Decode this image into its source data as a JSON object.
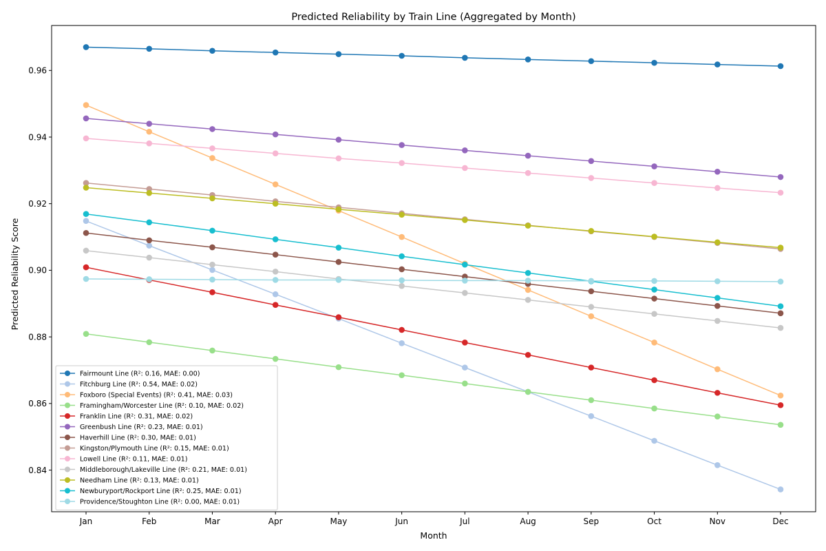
{
  "chart_data": {
    "type": "line",
    "title": "Predicted Reliability by Train Line (Aggregated by Month)",
    "xlabel": "Month",
    "ylabel": "Predicted Reliability Score",
    "categories": [
      "Jan",
      "Feb",
      "Mar",
      "Apr",
      "May",
      "Jun",
      "Jul",
      "Aug",
      "Sep",
      "Oct",
      "Nov",
      "Dec"
    ],
    "ylim": [
      0.8275,
      0.9735
    ],
    "yticks": [
      0.84,
      0.86,
      0.88,
      0.9,
      0.92,
      0.94,
      0.96
    ],
    "ytick_labels": [
      "0.84",
      "0.86",
      "0.88",
      "0.90",
      "0.92",
      "0.94",
      "0.96"
    ],
    "grid": false,
    "legend_position": "lower-left",
    "series": [
      {
        "name": "Fairmount Line (R²: 0.16, MAE: 0.00)",
        "color": "#1f77b4",
        "values": [
          0.967,
          0.9665,
          0.9659,
          0.9654,
          0.9649,
          0.9644,
          0.9638,
          0.9633,
          0.9628,
          0.9623,
          0.9618,
          0.9613
        ]
      },
      {
        "name": "Fitchburg Line (R²: 0.54, MAE: 0.02)",
        "color": "#aec7e8",
        "values": [
          0.9148,
          0.9074,
          0.9001,
          0.8928,
          0.8855,
          0.8781,
          0.8708,
          0.8635,
          0.8562,
          0.8488,
          0.8415,
          0.8342
        ]
      },
      {
        "name": "Foxboro (Special Events) (R²: 0.41, MAE: 0.03)",
        "color": "#ffbb78",
        "values": [
          0.9496,
          0.9416,
          0.9337,
          0.9258,
          0.9179,
          0.91,
          0.902,
          0.8941,
          0.8862,
          0.8783,
          0.8703,
          0.8624
        ]
      },
      {
        "name": "Framingham/Worcester Line (R²: 0.10, MAE: 0.02)",
        "color": "#98df8a",
        "values": [
          0.8809,
          0.8784,
          0.8759,
          0.8734,
          0.8709,
          0.8685,
          0.866,
          0.8635,
          0.861,
          0.8585,
          0.8561,
          0.8536
        ]
      },
      {
        "name": "Franklin Line (R²: 0.31, MAE: 0.02)",
        "color": "#d62728",
        "values": [
          0.9009,
          0.8971,
          0.8934,
          0.8896,
          0.8859,
          0.8821,
          0.8783,
          0.8746,
          0.8708,
          0.867,
          0.8632,
          0.8595
        ]
      },
      {
        "name": "Greenbush Line (R²: 0.23, MAE: 0.01)",
        "color": "#9467bd",
        "values": [
          0.9456,
          0.944,
          0.9424,
          0.9408,
          0.9392,
          0.9376,
          0.936,
          0.9344,
          0.9328,
          0.9312,
          0.9296,
          0.928
        ]
      },
      {
        "name": "Haverhill Line (R²: 0.30, MAE: 0.01)",
        "color": "#8c564b",
        "values": [
          0.9112,
          0.909,
          0.9069,
          0.9047,
          0.9025,
          0.9003,
          0.8981,
          0.8959,
          0.8937,
          0.8915,
          0.8893,
          0.8871
        ]
      },
      {
        "name": "Kingston/Plymouth Line (R²: 0.15, MAE: 0.01)",
        "color": "#c49c94",
        "values": [
          0.9262,
          0.9244,
          0.9226,
          0.9207,
          0.9189,
          0.9171,
          0.9153,
          0.9135,
          0.9117,
          0.91,
          0.9082,
          0.9064
        ]
      },
      {
        "name": "Lowell Line (R²: 0.11, MAE: 0.01)",
        "color": "#f7b6d2",
        "values": [
          0.9396,
          0.9381,
          0.9366,
          0.9351,
          0.9336,
          0.9322,
          0.9307,
          0.9292,
          0.9277,
          0.9262,
          0.9247,
          0.9233
        ]
      },
      {
        "name": "Middleborough/Lakeville Line (R²: 0.21, MAE: 0.01)",
        "color": "#c7c7c7",
        "values": [
          0.9059,
          0.9038,
          0.9017,
          0.8996,
          0.8974,
          0.8953,
          0.8932,
          0.8911,
          0.889,
          0.8869,
          0.8848,
          0.8827
        ]
      },
      {
        "name": "Needham Line (R²: 0.13, MAE: 0.01)",
        "color": "#bcbd22",
        "values": [
          0.9248,
          0.9232,
          0.9216,
          0.92,
          0.9183,
          0.9167,
          0.9151,
          0.9134,
          0.9118,
          0.9101,
          0.9084,
          0.9068
        ]
      },
      {
        "name": "Newburyport/Rockport Line (R²: 0.25, MAE: 0.01)",
        "color": "#17becf",
        "values": [
          0.9169,
          0.9144,
          0.9119,
          0.9093,
          0.9068,
          0.9042,
          0.9017,
          0.8992,
          0.8967,
          0.8942,
          0.8917,
          0.8892
        ]
      },
      {
        "name": "Providence/Stoughton Line (R²: 0.00, MAE: 0.01)",
        "color": "#9edae5",
        "values": [
          0.8974,
          0.8973,
          0.8972,
          0.8971,
          0.8971,
          0.897,
          0.8969,
          0.8969,
          0.8968,
          0.8968,
          0.8967,
          0.8966
        ]
      }
    ]
  }
}
